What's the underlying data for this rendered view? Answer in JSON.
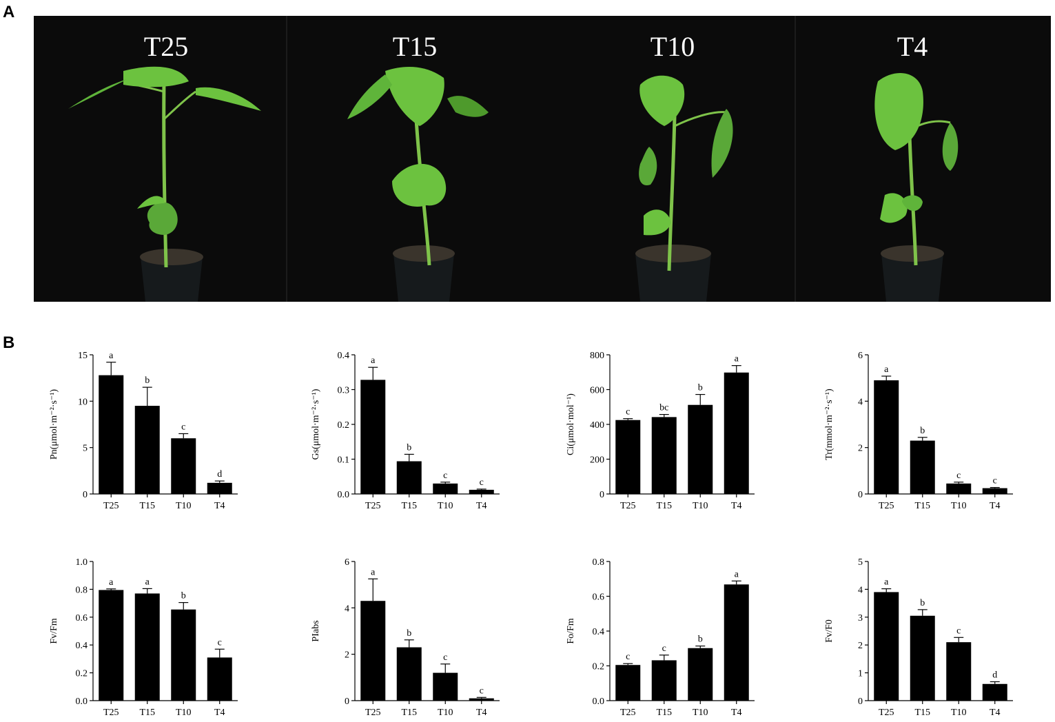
{
  "panel_labels": {
    "a": "A",
    "b": "B"
  },
  "photo": {
    "labels": [
      "T25",
      "T15",
      "T10",
      "T4"
    ],
    "colors": {
      "background": "#0b0b0b",
      "leaf": "#6cc23f",
      "leaf_dark": "#4e9a2c",
      "stem": "#7fc34a",
      "pot": "#161a1c",
      "soil": "#3a342c"
    }
  },
  "chart_data": [
    {
      "type": "bar",
      "ylabel": "Pn(μmol·m⁻²·s⁻¹)",
      "categories": [
        "T25",
        "T15",
        "T10",
        "T4"
      ],
      "values": [
        12.8,
        9.5,
        6.0,
        1.2
      ],
      "errors": [
        1.4,
        2.0,
        0.5,
        0.2
      ],
      "letters": [
        "a",
        "b",
        "c",
        "d"
      ],
      "ylim": [
        0,
        15
      ],
      "yticks": [
        0,
        5,
        10,
        15
      ],
      "ytick_labels": [
        "0",
        "5",
        "10",
        "15"
      ]
    },
    {
      "type": "bar",
      "ylabel": "Gs(μmol·m⁻²·s⁻¹)",
      "categories": [
        "T25",
        "T15",
        "T10",
        "T4"
      ],
      "values": [
        0.328,
        0.094,
        0.03,
        0.012
      ],
      "errors": [
        0.036,
        0.02,
        0.004,
        0.002
      ],
      "letters": [
        "a",
        "b",
        "c",
        "c"
      ],
      "ylim": [
        0,
        0.4
      ],
      "yticks": [
        0,
        0.1,
        0.2,
        0.3,
        0.4
      ],
      "ytick_labels": [
        "0.0",
        "0.1",
        "0.2",
        "0.3",
        "0.4"
      ]
    },
    {
      "type": "bar",
      "ylabel": "Ci(μmol·mol⁻¹)",
      "categories": [
        "T25",
        "T15",
        "T10",
        "T4"
      ],
      "values": [
        425,
        442,
        512,
        698
      ],
      "errors": [
        8,
        15,
        60,
        40
      ],
      "letters": [
        "c",
        "bc",
        "b",
        "a"
      ],
      "ylim": [
        0,
        800
      ],
      "yticks": [
        0,
        200,
        400,
        600,
        800
      ],
      "ytick_labels": [
        "0",
        "200",
        "400",
        "600",
        "800"
      ]
    },
    {
      "type": "bar",
      "ylabel": "Tr(mmol·m⁻²·s⁻¹)",
      "categories": [
        "T25",
        "T15",
        "T10",
        "T4"
      ],
      "values": [
        4.9,
        2.3,
        0.45,
        0.25
      ],
      "errors": [
        0.18,
        0.14,
        0.06,
        0.03
      ],
      "letters": [
        "a",
        "b",
        "c",
        "c"
      ],
      "ylim": [
        0,
        6
      ],
      "yticks": [
        0,
        2,
        4,
        6
      ],
      "ytick_labels": [
        "0",
        "2",
        "4",
        "6"
      ]
    },
    {
      "type": "bar",
      "ylabel": "Fv/Fm",
      "categories": [
        "T25",
        "T15",
        "T10",
        "T4"
      ],
      "values": [
        0.795,
        0.77,
        0.655,
        0.31
      ],
      "errors": [
        0.008,
        0.035,
        0.05,
        0.06
      ],
      "letters": [
        "a",
        "a",
        "b",
        "c"
      ],
      "ylim": [
        0,
        1.0
      ],
      "yticks": [
        0,
        0.2,
        0.4,
        0.6,
        0.8,
        1.0
      ],
      "ytick_labels": [
        "0.0",
        "0.2",
        "0.4",
        "0.6",
        "0.8",
        "1.0"
      ]
    },
    {
      "type": "bar",
      "ylabel": "PIabs",
      "categories": [
        "T25",
        "T15",
        "T10",
        "T4"
      ],
      "values": [
        4.3,
        2.3,
        1.2,
        0.1
      ],
      "errors": [
        0.95,
        0.32,
        0.38,
        0.04
      ],
      "letters": [
        "a",
        "b",
        "c",
        "c"
      ],
      "ylim": [
        0,
        6
      ],
      "yticks": [
        0,
        2,
        4,
        6
      ],
      "ytick_labels": [
        "0",
        "2",
        "4",
        "6"
      ]
    },
    {
      "type": "bar",
      "ylabel": "Fo/Fm",
      "categories": [
        "T25",
        "T15",
        "T10",
        "T4"
      ],
      "values": [
        0.205,
        0.232,
        0.302,
        0.668
      ],
      "errors": [
        0.008,
        0.03,
        0.012,
        0.02
      ],
      "letters": [
        "c",
        "c",
        "b",
        "a"
      ],
      "ylim": [
        0,
        0.8
      ],
      "yticks": [
        0,
        0.2,
        0.4,
        0.6,
        0.8
      ],
      "ytick_labels": [
        "0.0",
        "0.2",
        "0.4",
        "0.6",
        "0.8"
      ]
    },
    {
      "type": "bar",
      "ylabel": "Fv/F0",
      "categories": [
        "T25",
        "T15",
        "T10",
        "T4"
      ],
      "values": [
        3.9,
        3.05,
        2.1,
        0.6
      ],
      "errors": [
        0.12,
        0.22,
        0.17,
        0.08
      ],
      "letters": [
        "a",
        "b",
        "c",
        "d"
      ],
      "ylim": [
        0,
        5
      ],
      "yticks": [
        0,
        1,
        2,
        3,
        4,
        5
      ],
      "ytick_labels": [
        "0",
        "1",
        "2",
        "3",
        "4",
        "5"
      ]
    }
  ]
}
